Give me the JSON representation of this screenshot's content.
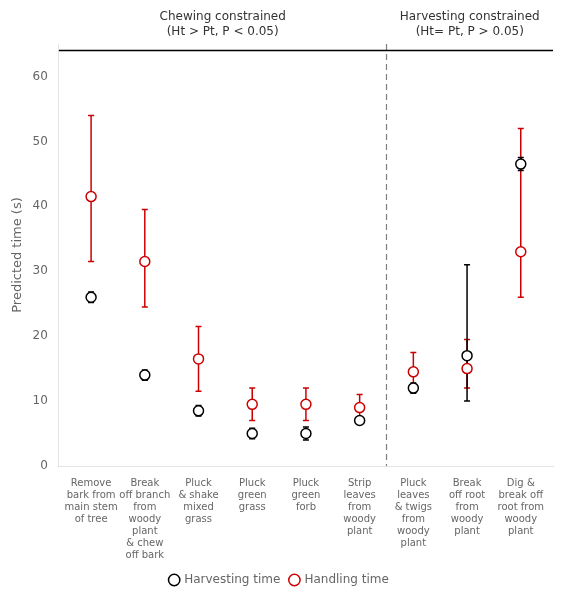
{
  "chart_data": {
    "type": "scatter",
    "categories": [
      "Remove\nbark from\nmain stem\nof tree",
      "Break\noff branch\nfrom\nwoody\nplant\n& chew\noff bark",
      "Pluck\n& shake\nmixed\ngrass",
      "Pluck\ngreen\ngrass",
      "Pluck\ngreen\nforb",
      "Strip\nleaves\nfrom\nwoody\nplant",
      "Pluck\nleaves\n& twigs\nfrom\nwoody\nplant",
      "Break\noff root\nfrom\nwoody\nplant",
      "Dig &\nbreak off\nroot from\nwoody\nplant"
    ],
    "series": [
      {
        "name": "Harvesting time",
        "color": "#000000",
        "marker": "circle",
        "values": [
          26.0,
          14.0,
          8.5,
          5.0,
          5.0,
          7.0,
          12.0,
          17.0,
          46.5
        ],
        "yerr_lo": [
          0.8,
          0.8,
          0.8,
          0.8,
          1.0,
          0.5,
          0.8,
          7.0,
          1.0
        ],
        "yerr_hi": [
          0.8,
          0.8,
          0.8,
          0.8,
          1.0,
          0.5,
          0.8,
          14.0,
          1.0
        ]
      },
      {
        "name": "Handling time",
        "color": "#cc0000",
        "marker": "circle",
        "values": [
          41.5,
          31.5,
          16.5,
          9.5,
          9.5,
          9.0,
          14.5,
          15.0,
          33.0
        ],
        "yerr_lo": [
          10.0,
          7.0,
          5.0,
          2.5,
          2.5,
          1.5,
          3.0,
          3.0,
          7.0
        ],
        "yerr_hi": [
          12.5,
          8.0,
          5.0,
          2.5,
          2.5,
          2.0,
          3.0,
          4.5,
          19.0
        ]
      }
    ],
    "ylabel": "Predicted time (s)",
    "xlim": [
      -0.6,
      8.6
    ],
    "ylim": [
      0,
      65
    ],
    "yticks": [
      0,
      10,
      20,
      30,
      40,
      50,
      60
    ],
    "lines": [
      {
        "y": 64,
        "color": "#000000",
        "line_style": "solid"
      },
      {
        "x": 5.5,
        "color": "#808080",
        "line_style": "dashed"
      }
    ],
    "annotations": [
      "Chewing constrained\n(Ht > Pt, P < 0.05)",
      "Harvesting constrained\n(Ht= Pt, P > 0.05)"
    ],
    "legend": "bottom",
    "grid": false
  }
}
